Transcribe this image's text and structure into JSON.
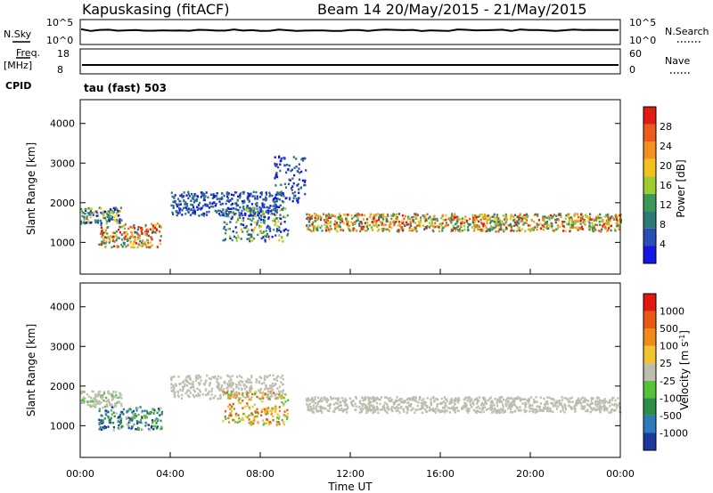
{
  "header": {
    "station": "Kapuskasing (fitACF)",
    "beam_date": "Beam 14 20/May/2015 - 21/May/2015"
  },
  "side_labels": {
    "nsky": "N.Sky",
    "freq": "Freq.",
    "mhz": "[MHz]",
    "cpid": "CPID",
    "nsearch": "N.Search",
    "nave": "Nave"
  },
  "mini_ticks": {
    "nsky_top": "10^5",
    "nsky_bot": "10^0",
    "nsearch_top": "10^5",
    "nsearch_bot": "10^0",
    "freq_top": "18",
    "freq_bot": "8",
    "nave_top": "60",
    "nave_bot": "0"
  },
  "cpid_text": "tau (fast) 503",
  "colors": {
    "power_scale": [
      "#1515e6",
      "#2a4fb4",
      "#2e7a78",
      "#3a9a55",
      "#9ccc2e",
      "#f2c21a",
      "#f59020",
      "#ec5a1c",
      "#e21a12"
    ],
    "velocity_scale": [
      "#1c3a9c",
      "#2e7ab8",
      "#2c8c4a",
      "#56c23a",
      "#bdbdb0",
      "#f2c230",
      "#f08a18",
      "#e85a12",
      "#e01810"
    ]
  },
  "chart_data": [
    {
      "type": "heatmap",
      "name": "power",
      "ylabel": "Slant Range [km]",
      "yticks": [
        "1000",
        "2000",
        "3000",
        "4000"
      ],
      "ylim": [
        200,
        4600
      ],
      "colorbar_label": "Power [dB]",
      "colorbar_ticks": [
        "4",
        "8",
        "12",
        "16",
        "20",
        "24",
        "28"
      ],
      "scatter_bands": [
        {
          "t0": 0.0,
          "t1": 1.8,
          "r0": 1500,
          "r1": 1900,
          "level": "mixed"
        },
        {
          "t0": 0.8,
          "t1": 3.6,
          "r0": 900,
          "r1": 1500,
          "level": "strong"
        },
        {
          "t0": 4.0,
          "t1": 9.0,
          "r0": 1700,
          "r1": 2300,
          "level": "weak"
        },
        {
          "t0": 6.3,
          "t1": 9.2,
          "r0": 1050,
          "r1": 1900,
          "level": "mixed"
        },
        {
          "t0": 8.6,
          "t1": 10.0,
          "r0": 2000,
          "r1": 3200,
          "level": "weak"
        },
        {
          "t0": 10.0,
          "t1": 24.0,
          "r0": 1300,
          "r1": 1750,
          "level": "strong"
        }
      ]
    },
    {
      "type": "heatmap",
      "name": "velocity",
      "ylabel": "Slant Range [km]",
      "yticks": [
        "1000",
        "2000",
        "3000",
        "4000"
      ],
      "ylim": [
        200,
        4600
      ],
      "colorbar_label": "Velocity [m s",
      "colorbar_sup": "-1",
      "colorbar_close": "]",
      "colorbar_ticks": [
        "1000",
        "500",
        "100",
        "25",
        "-25",
        "-100",
        "-500",
        "-1000"
      ],
      "xlabel": "Time UT",
      "xticks": [
        "00:00",
        "04:00",
        "08:00",
        "12:00",
        "16:00",
        "20:00",
        "00:00"
      ],
      "xlim": [
        0,
        24
      ]
    }
  ]
}
